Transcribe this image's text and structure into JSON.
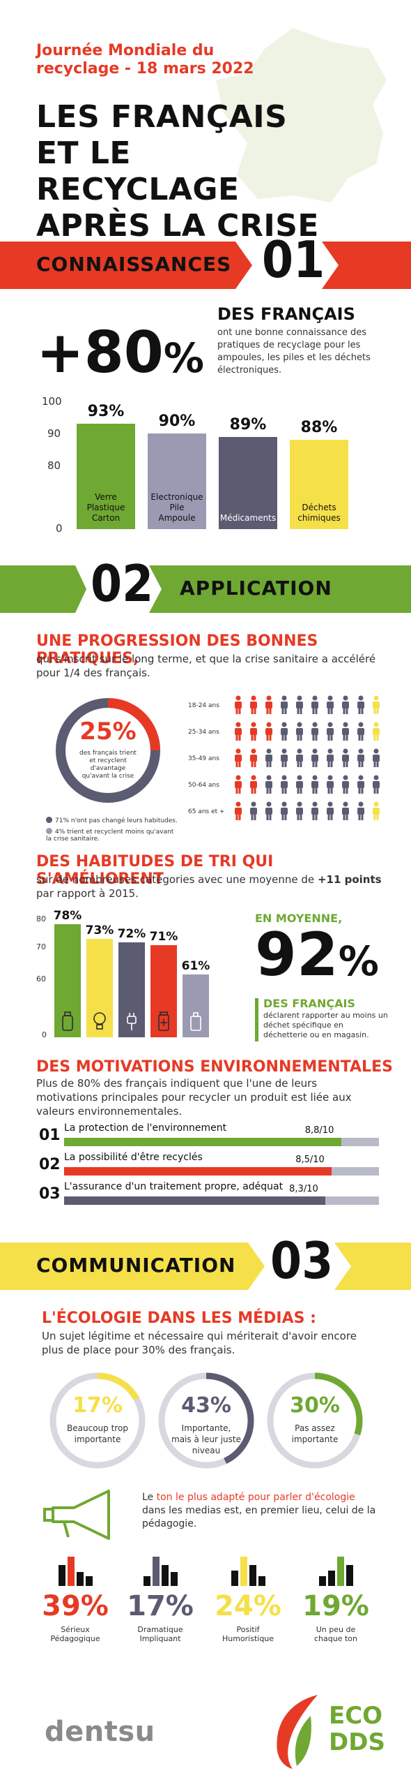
{
  "header": {
    "event_line1": "Journée Mondiale du",
    "event_line2": "recyclage - 18 mars 2022",
    "title_line1": "LES FRANÇAIS",
    "title_line2": "ET LE RECYCLAGE",
    "title_line3": "APRÈS LA CRISE"
  },
  "colors": {
    "red": "#e63a25",
    "green": "#6fa832",
    "grey_purple": "#9a9bb2",
    "slate": "#5b5b72",
    "yellow": "#f5e04a"
  },
  "section1": {
    "label": "CONNAISSANCES",
    "number": "01",
    "big_value": "+80",
    "big_pct": "%",
    "headline": "DES FRANÇAIS",
    "text": "ont une bonne connaissance des pratiques de recyclage pour les ampoules, les piles et les déchets électroniques."
  },
  "chart_data": [
    {
      "type": "bar",
      "categories": [
        "Verre Plastique Carton",
        "Electronique Pile Ampoule",
        "Médicaments",
        "Déchets chimiques"
      ],
      "category_lines": [
        [
          "Verre",
          "Plastique",
          "Carton"
        ],
        [
          "Electronique",
          "Pile",
          "Ampoule"
        ],
        [
          "Médicaments"
        ],
        [
          "Déchets",
          "chimiques"
        ]
      ],
      "values": [
        93,
        90,
        89,
        88
      ],
      "value_labels": [
        "93%",
        "90%",
        "89%",
        "88%"
      ],
      "bar_colors": [
        "#6fa832",
        "#9a9bb2",
        "#5b5b72",
        "#f5e04a"
      ],
      "yticks": [
        "100",
        "90",
        "80",
        "0"
      ],
      "ylim": [
        0,
        100
      ]
    },
    {
      "type": "bar",
      "categories": [
        "verre",
        "ampoule",
        "pile",
        "médicaments",
        "déchets chimiques"
      ],
      "values": [
        78,
        73,
        72,
        71,
        61
      ],
      "value_labels": [
        "78%",
        "73%",
        "72%",
        "71%",
        "61%"
      ],
      "bar_colors": [
        "#6fa832",
        "#f5e04a",
        "#5b5b72",
        "#e63a25",
        "#9a9bb2"
      ],
      "yticks": [
        "80",
        "70",
        "60",
        "0"
      ],
      "ylim": [
        0,
        80
      ]
    }
  ],
  "section2": {
    "label": "APPLICATION",
    "number": "02",
    "progress_title": "UNE PROGRESSION DES BONNES PRATIQUES,",
    "progress_text": "qui s'inscrit sur le long terme, et que la crise sanitaire a accéléré pour 1/4 des français.",
    "donut_pct": "25%",
    "donut_value": 25,
    "donut_caption": "des français trient et recyclent d'avantage qu'avant la crise",
    "legend": [
      {
        "text": "71% n'ont pas changé leurs habitudes.",
        "color": "#5b5b72"
      },
      {
        "text": "4% trient et recyclent moins qu'avant la crise sanitaire.",
        "color": "#9a9bb2"
      }
    ],
    "age_groups": [
      {
        "label": "18-24 ans",
        "red": 3,
        "yellow": 1
      },
      {
        "label": "25-34 ans",
        "red": 3,
        "yellow": 1
      },
      {
        "label": "35-49 ans",
        "red": 2,
        "yellow": 0
      },
      {
        "label": "50-64 ans",
        "red": 2,
        "yellow": 0
      },
      {
        "label": "65 ans et +",
        "red": 1,
        "yellow": 1
      }
    ],
    "habits_title": "DES HABITUDES DE TRI QUI S'AMÉLIORENT",
    "habits_text_1": "sur de nombreuses catégories avec une moyenne de ",
    "habits_text_bold": "+11 points",
    "habits_text_2": "par rapport à 2015.",
    "avg_label": "EN MOYENNE,",
    "avg_value": "92",
    "avg_pct": "%",
    "avg_head": "DES FRANÇAIS",
    "avg_text": "déclarent rapporter au moins un déchet spécifique en déchetterie ou en magasin.",
    "motivations_title": "DES MOTIVATIONS ENVIRONNEMENTALES",
    "motivations_text": "Plus de 80% des français indiquent que l'une de leurs motivations principales pour recycler un produit est liée aux valeurs environnementales.",
    "motivations": [
      {
        "num": "01",
        "label": "La protection de l'environnement",
        "score": "8,8/10",
        "value": 8.8,
        "color": "#6fa832"
      },
      {
        "num": "02",
        "label": "La possibilité d'être recyclés",
        "score": "8,5/10",
        "value": 8.5,
        "color": "#e63a25"
      },
      {
        "num": "03",
        "label": "L'assurance d'un traitement propre, adéquat",
        "score": "8,3/10",
        "value": 8.3,
        "color": "#5b5b72"
      }
    ]
  },
  "section3": {
    "label": "COMMUNICATION",
    "number": "03",
    "media_title": "L'ÉCOLOGIE DANS LES MÉDIAS :",
    "media_text": "Un sujet légitime et nécessaire qui mériterait d'avoir encore plus de place pour 30% des français.",
    "circles": [
      {
        "pct": "17%",
        "value": 17,
        "caption": "Beaucoup trop importante",
        "color": "#f5e04a"
      },
      {
        "pct": "43%",
        "value": 43,
        "caption": "Importante, mais à leur juste niveau",
        "color": "#5b5b72"
      },
      {
        "pct": "30%",
        "value": 30,
        "caption": "Pas assez importante",
        "color": "#6fa832"
      }
    ],
    "tone_text_pre": "Le ",
    "tone_text_red": "ton le plus adapté pour parler d'écologie",
    "tone_text_post": " dans les medias est, en premier lieu, celui de la pédagogie.",
    "tones": [
      {
        "pct": "39%",
        "caption": "Sérieux Pédagogique",
        "color": "#e63a25"
      },
      {
        "pct": "17%",
        "caption": "Dramatique Impliquant",
        "color": "#5b5b72"
      },
      {
        "pct": "24%",
        "caption": "Positif Humoristique",
        "color": "#f5e04a"
      },
      {
        "pct": "19%",
        "caption": "Un peu de chaque ton",
        "color": "#6fa832"
      }
    ]
  },
  "footer": {
    "brand": "dentsu",
    "eco_line1": "ECO",
    "eco_line2": "DDS"
  }
}
